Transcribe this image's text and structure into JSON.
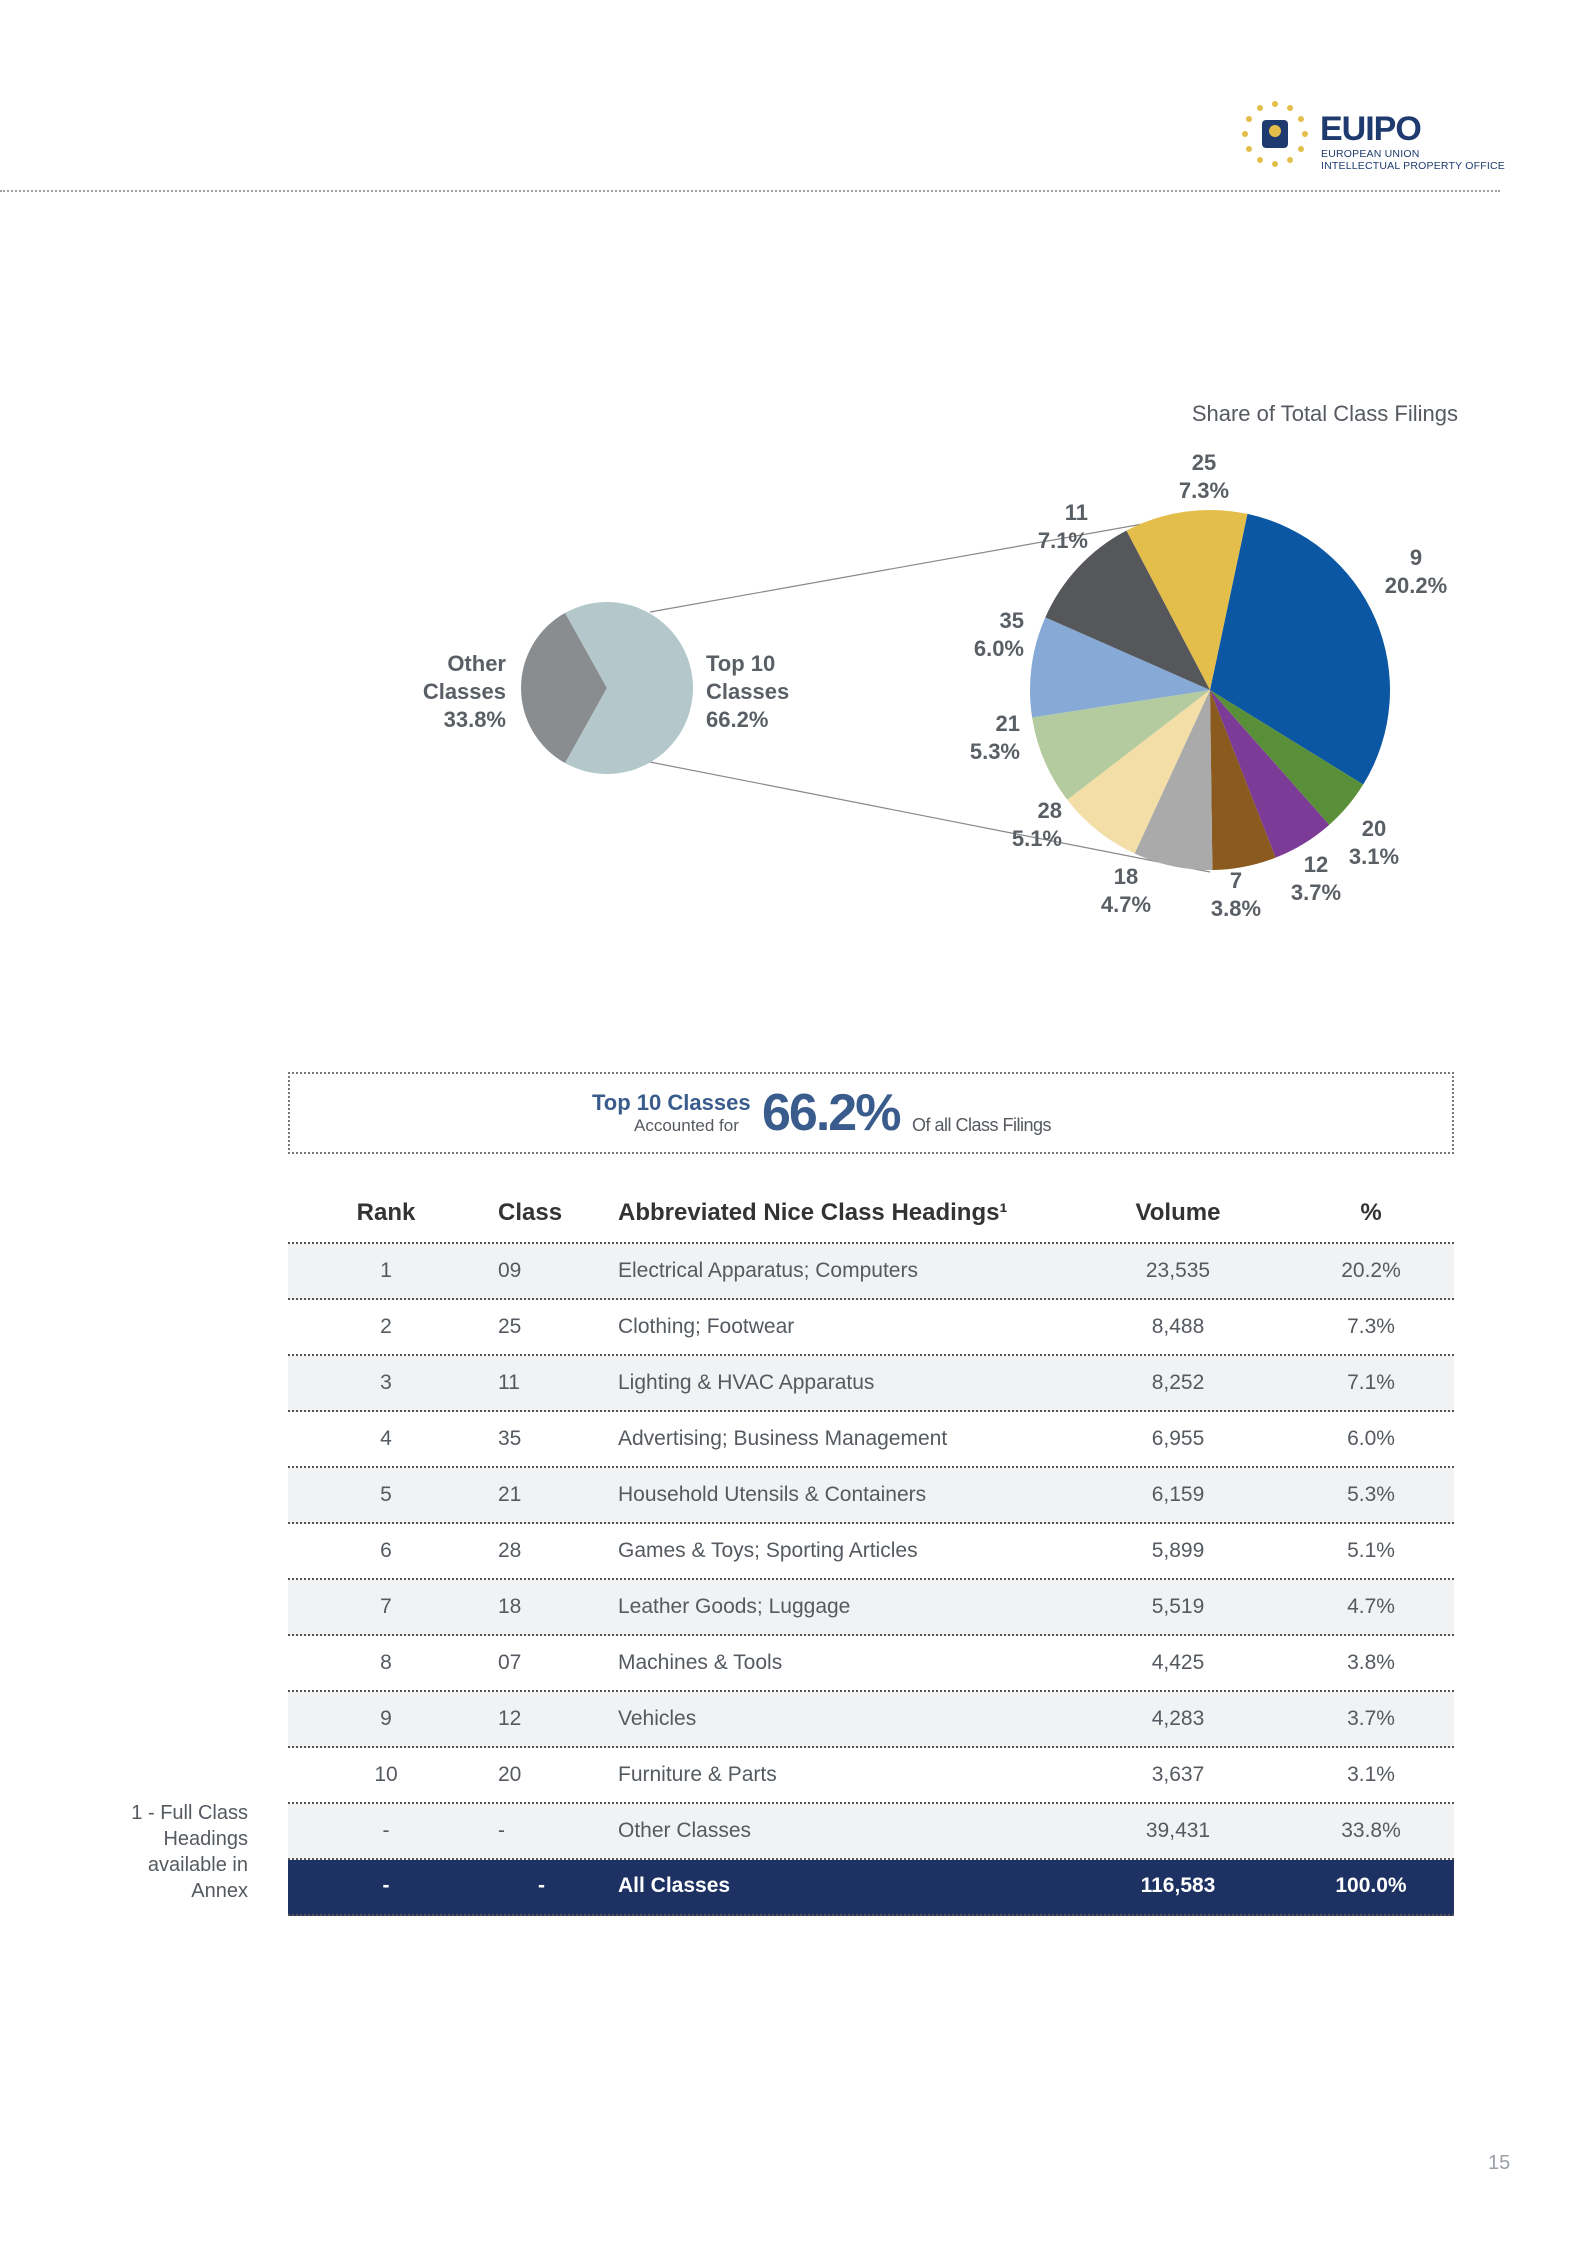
{
  "header": {
    "logo_word": "EUIPO",
    "logo_line1": "EUROPEAN UNION",
    "logo_line2": "INTELLECTUAL PROPERTY OFFICE"
  },
  "chart_data": [
    {
      "type": "pie",
      "slices": [
        {
          "label_lines": [
            "Other",
            "Classes"
          ],
          "value_label": "33.8%",
          "value": 33.8,
          "color": "#8a8d90"
        },
        {
          "label_lines": [
            "Top 10",
            "Classes"
          ],
          "value_label": "66.2%",
          "value": 66.2,
          "color": "#b4c8cb"
        }
      ]
    },
    {
      "type": "pie",
      "title": "Share of Total Class Filings",
      "slices": [
        {
          "label": "9",
          "value_label": "20.2%",
          "value": 20.2,
          "color": "#0b57a4"
        },
        {
          "label": "20",
          "value_label": "3.1%",
          "value": 3.1,
          "color": "#5a8f3a"
        },
        {
          "label": "12",
          "value_label": "3.7%",
          "value": 3.7,
          "color": "#7b3b97"
        },
        {
          "label": "7",
          "value_label": "3.8%",
          "value": 3.8,
          "color": "#8a5a1e"
        },
        {
          "label": "18",
          "value_label": "4.7%",
          "value": 4.7,
          "color": "#aaaaaa"
        },
        {
          "label": "28",
          "value_label": "5.1%",
          "value": 5.1,
          "color": "#f2dea6"
        },
        {
          "label": "21",
          "value_label": "5.3%",
          "value": 5.3,
          "color": "#b3cb9e"
        },
        {
          "label": "35",
          "value_label": "6.0%",
          "value": 6.0,
          "color": "#87a9d5"
        },
        {
          "label": "11",
          "value_label": "7.1%",
          "value": 7.1,
          "color": "#55575b"
        },
        {
          "label": "25",
          "value_label": "7.3%",
          "value": 7.3,
          "color": "#e4be4a"
        }
      ]
    }
  ],
  "highlight": {
    "top10_label": "Top 10 Classes",
    "accounted_label": "Accounted for",
    "percent": "66.2%",
    "of_label": "Of all Class Filings"
  },
  "table": {
    "headers": {
      "rank": "Rank",
      "class": "Class",
      "heading": "Abbreviated Nice Class Headings¹",
      "volume": "Volume",
      "pct": "%"
    },
    "rows": [
      {
        "rank": "1",
        "class": "09",
        "heading": "Electrical Apparatus; Computers",
        "volume": "23,535",
        "pct": "20.2%"
      },
      {
        "rank": "2",
        "class": "25",
        "heading": "Clothing; Footwear",
        "volume": "8,488",
        "pct": "7.3%"
      },
      {
        "rank": "3",
        "class": "11",
        "heading": "Lighting & HVAC Apparatus",
        "volume": "8,252",
        "pct": "7.1%"
      },
      {
        "rank": "4",
        "class": "35",
        "heading": "Advertising; Business Management",
        "volume": "6,955",
        "pct": "6.0%"
      },
      {
        "rank": "5",
        "class": "21",
        "heading": "Household Utensils & Containers",
        "volume": "6,159",
        "pct": "5.3%"
      },
      {
        "rank": "6",
        "class": "28",
        "heading": "Games & Toys; Sporting Articles",
        "volume": "5,899",
        "pct": "5.1%"
      },
      {
        "rank": "7",
        "class": "18",
        "heading": "Leather Goods; Luggage",
        "volume": "5,519",
        "pct": "4.7%"
      },
      {
        "rank": "8",
        "class": "07",
        "heading": "Machines & Tools",
        "volume": "4,425",
        "pct": "3.8%"
      },
      {
        "rank": "9",
        "class": "12",
        "heading": "Vehicles",
        "volume": "4,283",
        "pct": "3.7%"
      },
      {
        "rank": "10",
        "class": "20",
        "heading": "Furniture & Parts",
        "volume": "3,637",
        "pct": "3.1%"
      },
      {
        "rank": "-",
        "class": "-",
        "heading": "Other Classes",
        "volume": "39,431",
        "pct": "33.8%"
      }
    ],
    "total": {
      "rank": "-",
      "class": "-",
      "heading": "All Classes",
      "volume": "116,583",
      "pct": "100.0%"
    }
  },
  "footnote": {
    "lines": [
      "1 - Full Class",
      "Headings",
      "available in",
      "Annex"
    ]
  },
  "page_number": "15"
}
